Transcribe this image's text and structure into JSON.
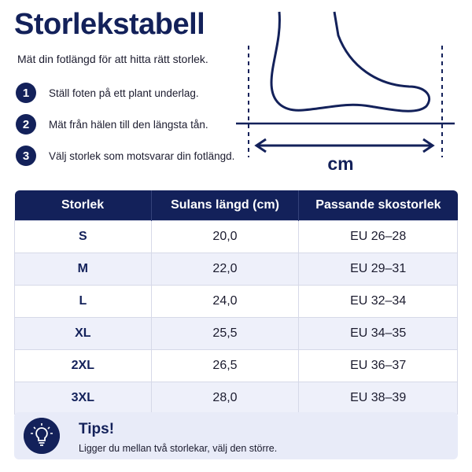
{
  "header": {
    "title": "Storlekstabell",
    "subtitle": "Mät din fotlängd för att hitta rätt storlek."
  },
  "steps": [
    {
      "number": "1",
      "text": "Ställ foten på ett plant underlag."
    },
    {
      "number": "2",
      "text": "Mät från hälen till den längsta tån."
    },
    {
      "number": "3",
      "text": "Välj storlek som motsvarar din fotlängd."
    }
  ],
  "diagram": {
    "unit_label": "cm"
  },
  "table": {
    "columns": [
      "Storlek",
      "Sulans längd (cm)",
      "Passande skostorlek"
    ],
    "rows": [
      [
        "S",
        "20,0",
        "EU 26–28"
      ],
      [
        "M",
        "22,0",
        "EU 29–31"
      ],
      [
        "L",
        "24,0",
        "EU 32–34"
      ],
      [
        "XL",
        "25,5",
        "EU 34–35"
      ],
      [
        "2XL",
        "26,5",
        "EU 36–37"
      ],
      [
        "3XL",
        "28,0",
        "EU 38–39"
      ]
    ]
  },
  "tip": {
    "title": "Tips!",
    "text": "Ligger du mellan två storlekar, välj den större."
  }
}
